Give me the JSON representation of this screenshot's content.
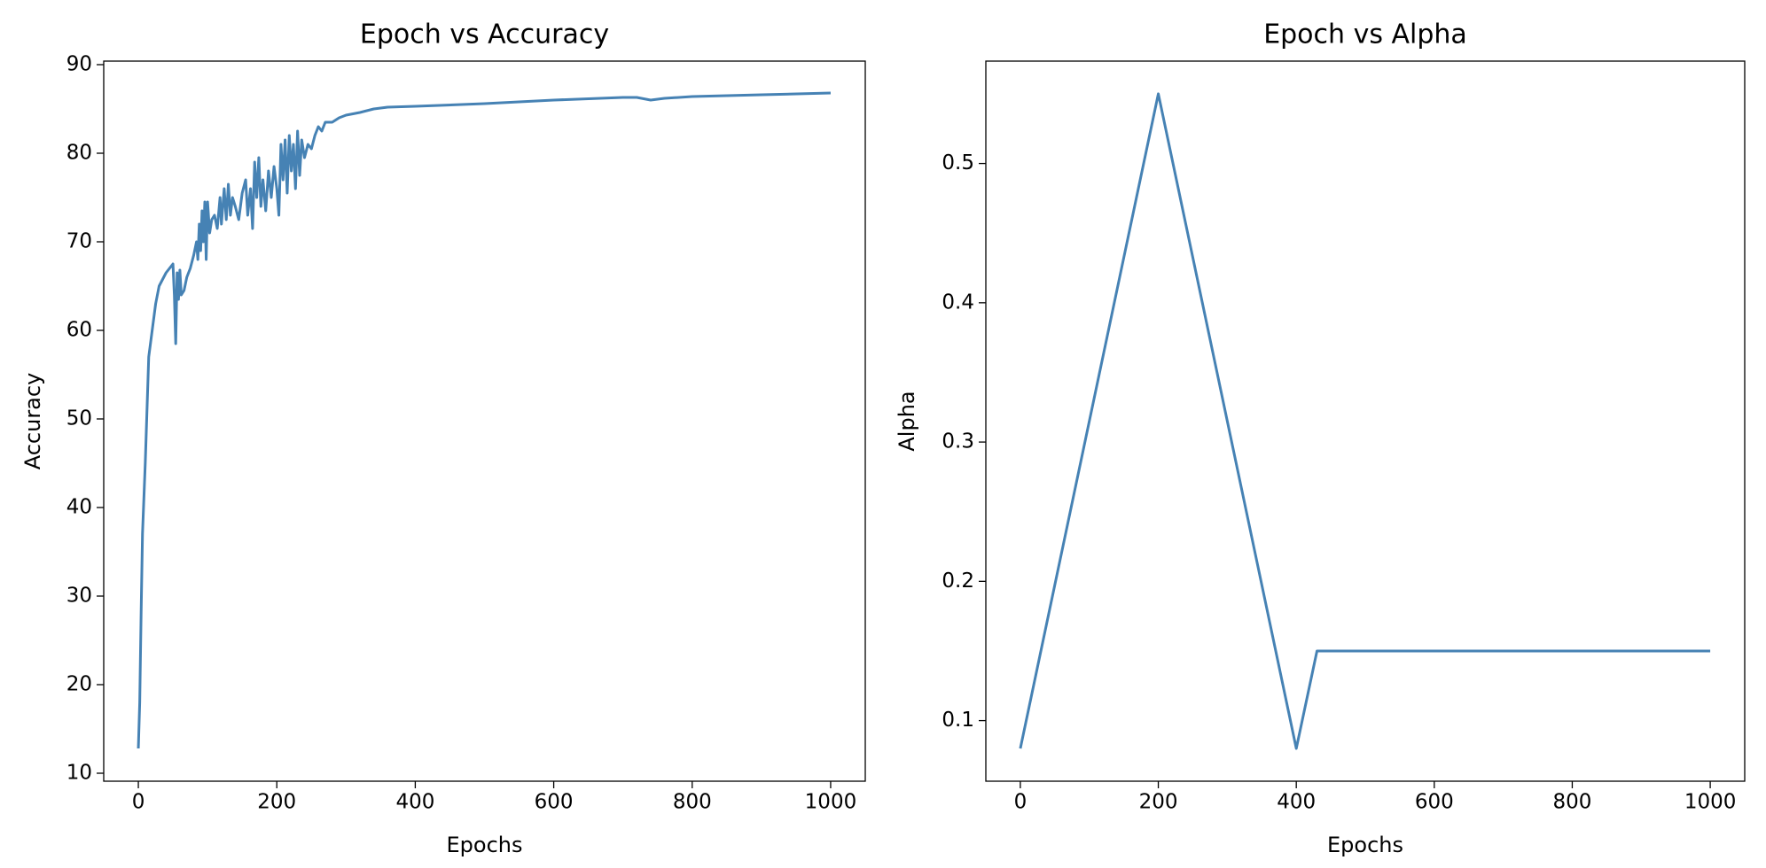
{
  "chart_data": [
    {
      "type": "line",
      "title": "Epoch vs Accuracy",
      "x_label": "Epochs",
      "y_label": "Accuracy",
      "color": "#4682b4",
      "x": [
        0,
        2,
        4,
        6,
        10,
        15,
        20,
        25,
        30,
        40,
        50,
        52,
        54,
        56,
        58,
        60,
        62,
        66,
        70,
        75,
        80,
        84,
        86,
        88,
        90,
        92,
        94,
        96,
        98,
        100,
        103,
        106,
        110,
        114,
        118,
        120,
        124,
        127,
        130,
        133,
        136,
        140,
        145,
        150,
        155,
        158,
        162,
        165,
        168,
        171,
        174,
        177,
        180,
        184,
        188,
        192,
        196,
        200,
        203,
        206,
        209,
        212,
        215,
        218,
        221,
        224,
        227,
        230,
        233,
        236,
        240,
        245,
        250,
        255,
        260,
        265,
        270,
        280,
        290,
        300,
        320,
        340,
        360,
        400,
        500,
        600,
        700,
        720,
        740,
        760,
        800,
        900,
        1000
      ],
      "values": [
        12.8,
        18,
        28,
        37,
        45,
        57,
        60,
        63,
        65,
        66.5,
        67.5,
        64,
        58.5,
        66.5,
        63.5,
        66.8,
        64,
        64.5,
        66,
        67,
        68.5,
        70,
        68,
        72,
        69,
        73.5,
        70,
        74.5,
        68,
        74.5,
        71,
        72.5,
        73,
        71.5,
        75,
        72,
        76,
        72.5,
        76.5,
        73,
        75,
        74,
        72.5,
        75.5,
        77,
        73,
        76,
        71.5,
        79,
        75,
        79.5,
        74,
        77,
        73.5,
        78,
        75,
        78.5,
        76,
        73,
        81,
        77,
        81.5,
        75.5,
        82,
        78,
        81,
        76,
        82.5,
        77.5,
        81.5,
        79.5,
        81,
        80.5,
        82,
        83,
        82.5,
        83.5,
        83.5,
        84,
        84.3,
        84.6,
        85,
        85.2,
        85.3,
        85.6,
        86,
        86.3,
        86.3,
        86,
        86.2,
        86.4,
        86.6,
        86.8
      ],
      "xlim": [
        -50,
        1050
      ],
      "ylim": [
        9.1,
        90.4
      ],
      "xticks": [
        0,
        200,
        400,
        600,
        800,
        1000
      ],
      "yticks": [
        10,
        20,
        30,
        40,
        50,
        60,
        70,
        80,
        90
      ]
    },
    {
      "type": "line",
      "title": "Epoch vs Alpha",
      "x_label": "Epochs",
      "y_label": "Alpha",
      "color": "#4682b4",
      "x": [
        0,
        200,
        400,
        430,
        1000
      ],
      "values": [
        0.08,
        0.55,
        0.08,
        0.15,
        0.15
      ],
      "xlim": [
        -50,
        1050
      ],
      "ylim": [
        0.0565,
        0.5735
      ],
      "xticks": [
        0,
        200,
        400,
        600,
        800,
        1000
      ],
      "yticks": [
        0.1,
        0.2,
        0.3,
        0.4,
        0.5
      ]
    }
  ]
}
